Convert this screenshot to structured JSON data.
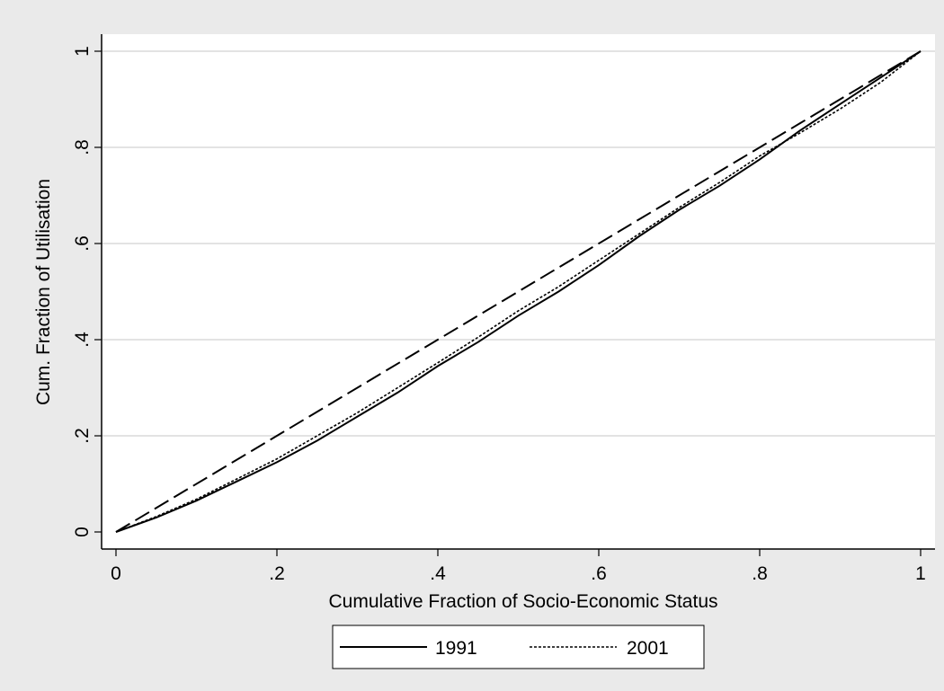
{
  "chart_data": {
    "type": "line",
    "xlabel": "Cumulative Fraction of Socio-Economic Status",
    "ylabel": "Cum. Fraction of Utilisation",
    "xlim": [
      0,
      1
    ],
    "ylim": [
      0,
      1
    ],
    "x_ticks": [
      0,
      0.2,
      0.4,
      0.6,
      0.8,
      1
    ],
    "x_tick_labels": [
      "0",
      ".2",
      ".4",
      ".6",
      ".8",
      "1"
    ],
    "y_ticks": [
      0,
      0.2,
      0.4,
      0.6,
      0.8,
      1
    ],
    "y_tick_labels": [
      "0",
      ".2",
      ".4",
      ".6",
      ".8",
      "1"
    ],
    "grid": "horizontal",
    "legend_position": "bottom",
    "equality_line": {
      "x": [
        0,
        1
      ],
      "y": [
        0,
        1
      ],
      "style": "dashed"
    },
    "series": [
      {
        "name": "1991",
        "style": "solid",
        "x": [
          0,
          0.05,
          0.1,
          0.15,
          0.2,
          0.25,
          0.3,
          0.35,
          0.4,
          0.45,
          0.5,
          0.55,
          0.6,
          0.65,
          0.7,
          0.75,
          0.8,
          0.85,
          0.9,
          0.95,
          1
        ],
        "y": [
          0,
          0.03,
          0.065,
          0.105,
          0.145,
          0.19,
          0.24,
          0.29,
          0.345,
          0.395,
          0.45,
          0.5,
          0.555,
          0.615,
          0.67,
          0.72,
          0.775,
          0.835,
          0.89,
          0.945,
          1
        ]
      },
      {
        "name": "2001",
        "style": "dotted",
        "x": [
          0,
          0.05,
          0.1,
          0.15,
          0.2,
          0.25,
          0.3,
          0.35,
          0.4,
          0.45,
          0.5,
          0.55,
          0.6,
          0.65,
          0.7,
          0.75,
          0.8,
          0.85,
          0.9,
          0.95,
          1
        ],
        "y": [
          0,
          0.032,
          0.068,
          0.11,
          0.152,
          0.2,
          0.248,
          0.3,
          0.352,
          0.405,
          0.46,
          0.51,
          0.565,
          0.62,
          0.675,
          0.727,
          0.782,
          0.83,
          0.88,
          0.935,
          1
        ]
      }
    ]
  }
}
